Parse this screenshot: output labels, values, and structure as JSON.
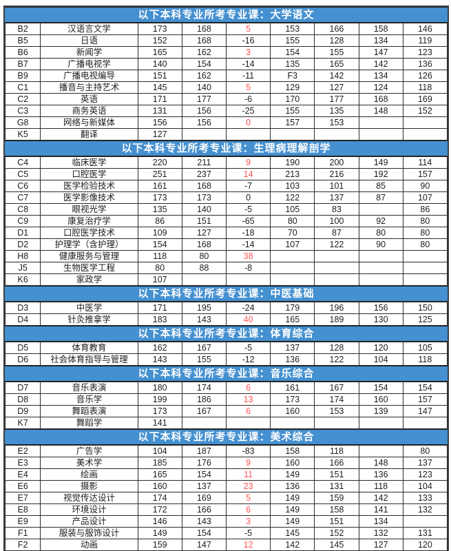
{
  "colors": {
    "header_bg": "#4590d0",
    "header_text": "#ffffff",
    "red_value": "#ff5252",
    "cell_text": "#1c1c1c",
    "outer_border": "#3d3d3d"
  },
  "table": {
    "sections": [
      {
        "title": "以下本科专业所考专业课：大学语文",
        "rows": [
          {
            "code": "B2",
            "name": "汉语言文学",
            "values": [
              "173",
              "168",
              "5",
              "153",
              "166",
              "158",
              "146"
            ],
            "red": true
          },
          {
            "code": "B5",
            "name": "日语",
            "values": [
              "152",
              "168",
              "-16",
              "155",
              "128",
              "134",
              "119"
            ],
            "red": false
          },
          {
            "code": "B6",
            "name": "新闻学",
            "values": [
              "165",
              "162",
              "3",
              "154",
              "155",
              "147",
              "123"
            ],
            "red": true
          },
          {
            "code": "B7",
            "name": "广播电视学",
            "values": [
              "140",
              "154",
              "-14",
              "135",
              "165",
              "142",
              "136"
            ],
            "red": false
          },
          {
            "code": "B9",
            "name": "广播电视编导",
            "values": [
              "151",
              "162",
              "-11",
              "F3",
              "142",
              "134",
              "126"
            ],
            "red": false
          },
          {
            "code": "C1",
            "name": "播音与主持艺术",
            "values": [
              "145",
              "140",
              "5",
              "129",
              "127",
              "124",
              "118"
            ],
            "red": true
          },
          {
            "code": "C2",
            "name": "英语",
            "values": [
              "171",
              "177",
              "-6",
              "170",
              "177",
              "168",
              "169"
            ],
            "red": false
          },
          {
            "code": "C3",
            "name": "商务英语",
            "values": [
              "131",
              "156",
              "-25",
              "155",
              "135",
              "148",
              "152"
            ],
            "red": false
          },
          {
            "code": "G8",
            "name": "网络与新媒体",
            "values": [
              "156",
              "156",
              "0",
              "157",
              "153",
              "",
              ""
            ],
            "red": true
          },
          {
            "code": "K5",
            "name": "翻译",
            "values": [
              "127",
              "",
              "",
              "",
              "",
              "",
              ""
            ],
            "red": false
          }
        ]
      },
      {
        "title": "以下本科专业所考专业课：生理病理解剖学",
        "rows": [
          {
            "code": "C4",
            "name": "临床医学",
            "values": [
              "220",
              "211",
              "9",
              "190",
              "200",
              "149",
              "114"
            ],
            "red": true
          },
          {
            "code": "C5",
            "name": "口腔医学",
            "values": [
              "251",
              "237",
              "14",
              "213",
              "216",
              "192",
              "157"
            ],
            "red": true
          },
          {
            "code": "C6",
            "name": "医学检验技术",
            "values": [
              "161",
              "168",
              "-7",
              "103",
              "101",
              "85",
              "90"
            ],
            "red": false
          },
          {
            "code": "C7",
            "name": "医学影像技术",
            "values": [
              "173",
              "173",
              "0",
              "122",
              "137",
              "87",
              "107"
            ],
            "red": false
          },
          {
            "code": "C8",
            "name": "眼视光学",
            "values": [
              "135",
              "140",
              "-5",
              "105",
              "83",
              "",
              "86"
            ],
            "red": false
          },
          {
            "code": "C9",
            "name": "康复治疗学",
            "values": [
              "86",
              "151",
              "-65",
              "80",
              "100",
              "92",
              "80"
            ],
            "red": false
          },
          {
            "code": "D1",
            "name": "口腔医学技术",
            "values": [
              "109",
              "127",
              "-18",
              "70",
              "87",
              "80",
              "80"
            ],
            "red": false
          },
          {
            "code": "D2",
            "name": "护理学（含护理）",
            "values": [
              "154",
              "168",
              "-14",
              "107",
              "122",
              "90",
              "80"
            ],
            "red": false
          },
          {
            "code": "H8",
            "name": "健康服务与管理",
            "values": [
              "118",
              "80",
              "38",
              "",
              "",
              "",
              ""
            ],
            "red": true
          },
          {
            "code": "J5",
            "name": "生物医学工程",
            "values": [
              "80",
              "88",
              "-8",
              "",
              "",
              "",
              ""
            ],
            "red": false
          },
          {
            "code": "K6",
            "name": "家政学",
            "values": [
              "107",
              "",
              "",
              "",
              "",
              "",
              ""
            ],
            "red": false
          }
        ]
      },
      {
        "title": "以下本科专业所考专业课：中医基础",
        "rows": [
          {
            "code": "D3",
            "name": "中医学",
            "values": [
              "171",
              "195",
              "-24",
              "179",
              "196",
              "156",
              "150"
            ],
            "red": false
          },
          {
            "code": "D4",
            "name": "针灸推拿学",
            "values": [
              "183",
              "143",
              "40",
              "165",
              "189",
              "130",
              "125"
            ],
            "red": true
          }
        ]
      },
      {
        "title": "以下本科专业所考专业课：体育综合",
        "rows": [
          {
            "code": "D5",
            "name": "体育教育",
            "values": [
              "162",
              "167",
              "-5",
              "137",
              "128",
              "120",
              "105"
            ],
            "red": false
          },
          {
            "code": "D6",
            "name": "社会体育指导与管理",
            "values": [
              "143",
              "155",
              "-12",
              "136",
              "122",
              "104",
              "118"
            ],
            "red": false
          }
        ]
      },
      {
        "title": "以下本科专业所考专业课：音乐综合",
        "rows": [
          {
            "code": "D7",
            "name": "音乐表演",
            "values": [
              "180",
              "174",
              "6",
              "161",
              "167",
              "154",
              "154"
            ],
            "red": true
          },
          {
            "code": "D8",
            "name": "音乐学",
            "values": [
              "199",
              "186",
              "13",
              "173",
              "174",
              "160",
              "157"
            ],
            "red": true
          },
          {
            "code": "D9",
            "name": "舞蹈表演",
            "values": [
              "173",
              "167",
              "6",
              "160",
              "153",
              "139",
              "147"
            ],
            "red": true
          },
          {
            "code": "K7",
            "name": "舞蹈学",
            "values": [
              "141",
              "",
              "",
              "",
              "",
              "",
              ""
            ],
            "red": false
          }
        ]
      },
      {
        "title": "以下本科专业所考专业课：美术综合",
        "rows": [
          {
            "code": "E2",
            "name": "广告学",
            "values": [
              "104",
              "187",
              "-83",
              "158",
              "118",
              "",
              "80"
            ],
            "red": false
          },
          {
            "code": "E3",
            "name": "美术学",
            "values": [
              "185",
              "176",
              "9",
              "160",
              "166",
              "148",
              "137"
            ],
            "red": true
          },
          {
            "code": "E4",
            "name": "绘画",
            "values": [
              "165",
              "154",
              "11",
              "149",
              "151",
              "136",
              "123"
            ],
            "red": true
          },
          {
            "code": "E6",
            "name": "摄影",
            "values": [
              "160",
              "137",
              "23",
              "136",
              "131",
              "118",
              "104"
            ],
            "red": true
          },
          {
            "code": "E7",
            "name": "视觉传达设计",
            "values": [
              "174",
              "169",
              "5",
              "149",
              "159",
              "142",
              "133"
            ],
            "red": true
          },
          {
            "code": "E8",
            "name": "环境设计",
            "values": [
              "172",
              "166",
              "6",
              "149",
              "158",
              "141",
              "132"
            ],
            "red": true
          },
          {
            "code": "E9",
            "name": "产品设计",
            "values": [
              "146",
              "143",
              "3",
              "149",
              "151",
              "134",
              ""
            ],
            "red": true
          },
          {
            "code": "F1",
            "name": "服装与服饰设计",
            "values": [
              "149",
              "154",
              "-5",
              "145",
              "152",
              "132",
              "131"
            ],
            "red": false
          },
          {
            "code": "F2",
            "name": "动画",
            "values": [
              "159",
              "147",
              "12",
              "142",
              "145",
              "127",
              "120"
            ],
            "red": true
          }
        ]
      }
    ]
  }
}
